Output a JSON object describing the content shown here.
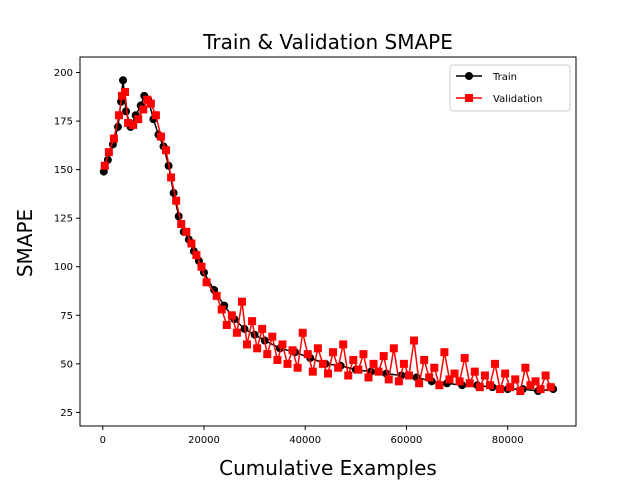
{
  "chart_data": {
    "type": "line",
    "title": "Train & Validation SMAPE",
    "xlabel": "Cumulative Examples",
    "ylabel": "SMAPE",
    "xlim": [
      -4500,
      93500
    ],
    "ylim": [
      18,
      208
    ],
    "xticks": [
      0,
      20000,
      40000,
      60000,
      80000
    ],
    "yticks": [
      25,
      50,
      75,
      100,
      125,
      150,
      175,
      200
    ],
    "grid": false,
    "legend_position": "upper-right",
    "colors": {
      "train": "#000000",
      "validation": "#ff0000"
    },
    "series": [
      {
        "name": "Train",
        "marker": "circle",
        "color": "#000000",
        "x": [
          200,
          1000,
          2000,
          3000,
          3600,
          4000,
          4600,
          5500,
          6500,
          7500,
          8200,
          9000,
          10000,
          11000,
          12000,
          13000,
          14000,
          15000,
          16000,
          17000,
          18000,
          19000,
          20000,
          22000,
          24000,
          26000,
          28000,
          30000,
          32000,
          35000,
          38000,
          41000,
          44000,
          47000,
          50000,
          53000,
          56000,
          59000,
          62000,
          65000,
          68000,
          71000,
          74000,
          77000,
          80000,
          83000,
          86000,
          89000
        ],
        "y": [
          149,
          155,
          163,
          172,
          185,
          196,
          180,
          172,
          178,
          183,
          188,
          186,
          176,
          168,
          162,
          152,
          138,
          126,
          118,
          114,
          108,
          103,
          97,
          88,
          80,
          73,
          68,
          65,
          62,
          58,
          56,
          53,
          50,
          49,
          47,
          46,
          45,
          44,
          43,
          41,
          40,
          39,
          39,
          38,
          37,
          37,
          36,
          37
        ]
      },
      {
        "name": "Validation",
        "marker": "square",
        "color": "#ff0000",
        "x": [
          400,
          1200,
          2200,
          3200,
          3800,
          4400,
          5000,
          6000,
          7000,
          8000,
          8800,
          9500,
          10500,
          11500,
          12500,
          13500,
          14500,
          15500,
          16500,
          17500,
          18500,
          19500,
          20500,
          22500,
          23500,
          24500,
          25500,
          26500,
          27500,
          28500,
          29500,
          30500,
          31500,
          32500,
          33500,
          34500,
          35500,
          36500,
          37500,
          38500,
          39500,
          40500,
          41500,
          42500,
          43500,
          44500,
          45500,
          46500,
          47500,
          48500,
          49500,
          50500,
          51500,
          52500,
          53500,
          54500,
          55500,
          56500,
          57500,
          58500,
          59500,
          60500,
          61500,
          62500,
          63500,
          64500,
          65500,
          66500,
          67500,
          68500,
          69500,
          70500,
          71500,
          72500,
          73500,
          74500,
          75500,
          76500,
          77500,
          78500,
          79500,
          80500,
          81500,
          82500,
          83500,
          84500,
          85500,
          86500,
          87500,
          88500
        ],
        "y": [
          152,
          159,
          166,
          178,
          188,
          190,
          174,
          173,
          176,
          181,
          186,
          184,
          178,
          167,
          160,
          146,
          134,
          122,
          118,
          112,
          106,
          100,
          92,
          85,
          78,
          70,
          75,
          66,
          82,
          60,
          72,
          58,
          68,
          55,
          64,
          52,
          60,
          50,
          57,
          48,
          66,
          55,
          46,
          58,
          50,
          45,
          56,
          48,
          60,
          44,
          52,
          47,
          55,
          43,
          50,
          46,
          54,
          42,
          58,
          41,
          50,
          44,
          62,
          40,
          52,
          43,
          48,
          39,
          56,
          42,
          45,
          41,
          53,
          40,
          46,
          38,
          44,
          39,
          50,
          37,
          45,
          38,
          42,
          36,
          48,
          39,
          41,
          37,
          44,
          38
        ]
      }
    ]
  }
}
